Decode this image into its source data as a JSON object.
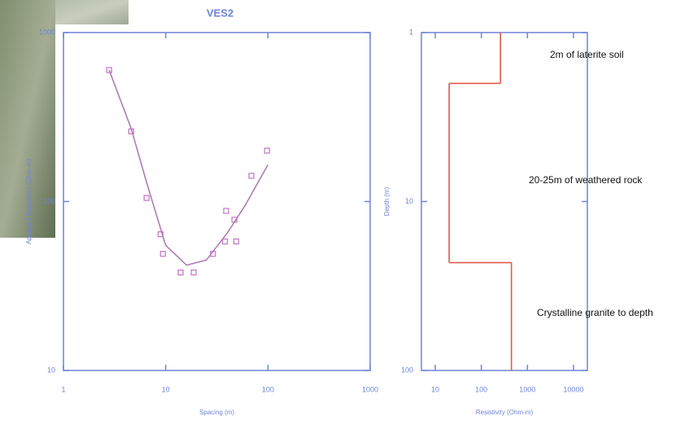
{
  "chart_data": [
    {
      "type": "scatter",
      "title": "VES2",
      "x_label": "Spacing (m)",
      "y_label": "Apparent Resistivity (Ohm-m)",
      "x_scale": "log",
      "y_scale": "log",
      "xlim": [
        1,
        1000
      ],
      "ylim": [
        10,
        1000
      ],
      "xticks": [
        1,
        10,
        100,
        1000
      ],
      "yticks": [
        10,
        100,
        1000
      ],
      "axis_color": "#6f84d6",
      "series": [
        {
          "type": "scatter",
          "color": "#c77cc7",
          "x": [
            2.8,
            4.6,
            6.5,
            8.9,
            9.4,
            14,
            18.8,
            29,
            38,
            39,
            47,
            49,
            69,
            98
          ],
          "values": [
            600,
            260,
            105,
            64,
            49,
            38,
            38,
            49,
            58,
            88,
            78,
            58,
            142,
            200
          ]
        },
        {
          "type": "line",
          "color": "#b07ab8",
          "x": [
            2.8,
            4.6,
            6.5,
            10,
            16,
            25,
            40,
            60,
            100
          ],
          "values": [
            600,
            270,
            130,
            55,
            42,
            45,
            65,
            95,
            165
          ]
        }
      ]
    },
    {
      "type": "step",
      "x_label": "Resistivity (Ohm-m)",
      "y_label": "Depth (m)",
      "x_scale": "log",
      "y_scale": "log",
      "y_inverted": true,
      "xlim": [
        5,
        20000
      ],
      "ylim": [
        1,
        100
      ],
      "xticks": [
        10,
        100,
        1000,
        10000
      ],
      "yticks": [
        1,
        10,
        100
      ],
      "axis_color": "#6f84d6",
      "series": [
        {
          "color": "#e05a4a",
          "values": [
            260,
            20,
            450
          ],
          "boundaries": [
            2,
            23
          ]
        }
      ],
      "annotations": [
        "2m of laterite soil",
        "20-25m of weathered rock",
        "Crystalline granite to depth"
      ]
    }
  ]
}
